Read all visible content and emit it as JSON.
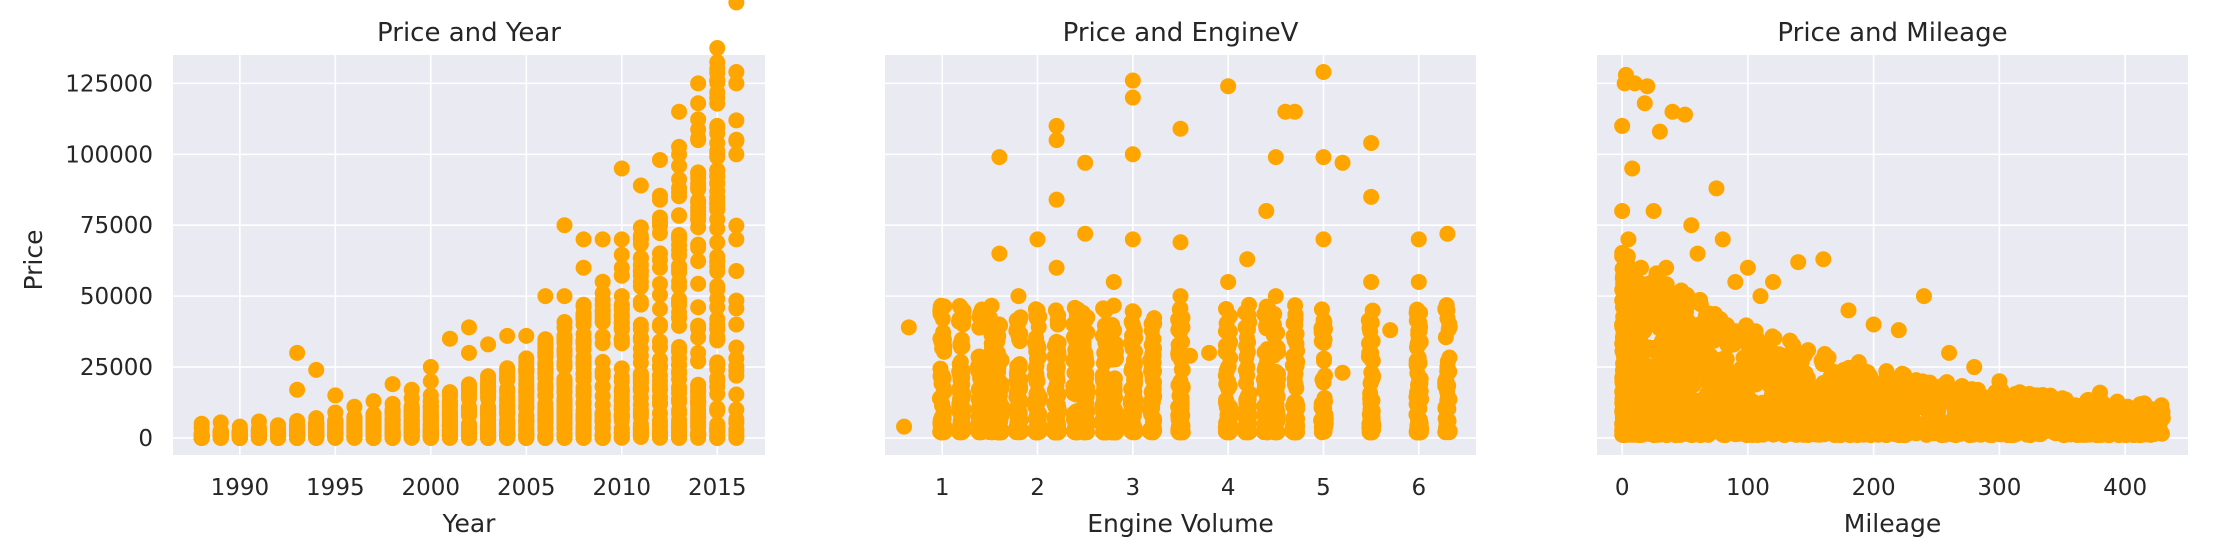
{
  "colors": {
    "accent": "#FFA500",
    "plot_bg": "#EAEAF2",
    "grid": "#FFFFFF"
  },
  "chart_data": [
    {
      "type": "scatter",
      "title": "Price and Year",
      "xlabel": "Year",
      "ylabel": "Price",
      "xlim": [
        1986.5,
        2017.5
      ],
      "ylim": [
        -6000,
        135000
      ],
      "xticks": [
        1990,
        1995,
        2000,
        2005,
        2010,
        2015
      ],
      "yticks": [
        0,
        25000,
        50000,
        75000,
        100000,
        125000
      ],
      "grid": true,
      "points": [
        [
          1988,
          1000
        ],
        [
          1988,
          3500
        ],
        [
          1988,
          5000
        ],
        [
          1989,
          2000
        ],
        [
          1989,
          5500
        ],
        [
          1990,
          1500
        ],
        [
          1990,
          4000
        ],
        [
          1991,
          2500
        ],
        [
          1991,
          5800
        ],
        [
          1992,
          2000
        ],
        [
          1992,
          4500
        ],
        [
          1993,
          3000
        ],
        [
          1993,
          6000
        ],
        [
          1993,
          17000
        ],
        [
          1993,
          30000
        ],
        [
          1994,
          2500
        ],
        [
          1994,
          7000
        ],
        [
          1994,
          24000
        ],
        [
          1995,
          3000
        ],
        [
          1995,
          9000
        ],
        [
          1995,
          15000
        ],
        [
          1996,
          4000
        ],
        [
          1996,
          11000
        ],
        [
          1997,
          5000
        ],
        [
          1997,
          13000
        ],
        [
          1998,
          5000
        ],
        [
          1998,
          12000
        ],
        [
          1998,
          19000
        ],
        [
          1999,
          6000
        ],
        [
          1999,
          14000
        ],
        [
          1999,
          17000
        ],
        [
          2000,
          7000
        ],
        [
          2000,
          15000
        ],
        [
          2000,
          20000
        ],
        [
          2000,
          25000
        ],
        [
          2001,
          8000
        ],
        [
          2001,
          16000
        ],
        [
          2001,
          35000
        ],
        [
          2002,
          8000
        ],
        [
          2002,
          18000
        ],
        [
          2002,
          30000
        ],
        [
          2002,
          39000
        ],
        [
          2003,
          9000
        ],
        [
          2003,
          20000
        ],
        [
          2003,
          33000
        ],
        [
          2004,
          10000
        ],
        [
          2004,
          22000
        ],
        [
          2004,
          36000
        ],
        [
          2005,
          11000
        ],
        [
          2005,
          24000
        ],
        [
          2005,
          36000
        ],
        [
          2006,
          12000
        ],
        [
          2006,
          30000
        ],
        [
          2006,
          50000
        ],
        [
          2007,
          14000
        ],
        [
          2007,
          35000
        ],
        [
          2007,
          50000
        ],
        [
          2007,
          75000
        ],
        [
          2008,
          15000
        ],
        [
          2008,
          40000
        ],
        [
          2008,
          60000
        ],
        [
          2008,
          70000
        ],
        [
          2009,
          18000
        ],
        [
          2009,
          45000
        ],
        [
          2009,
          70000
        ],
        [
          2010,
          20000
        ],
        [
          2010,
          50000
        ],
        [
          2010,
          70000
        ],
        [
          2010,
          95000
        ],
        [
          2011,
          22000
        ],
        [
          2011,
          55000
        ],
        [
          2011,
          70000
        ],
        [
          2011,
          89000
        ],
        [
          2012,
          25000
        ],
        [
          2012,
          60000
        ],
        [
          2012,
          77000
        ],
        [
          2012,
          98000
        ],
        [
          2013,
          28000
        ],
        [
          2013,
          70000
        ],
        [
          2013,
          100000
        ],
        [
          2013,
          115000
        ],
        [
          2014,
          30000
        ],
        [
          2014,
          80000
        ],
        [
          2014,
          105000
        ],
        [
          2014,
          118000
        ],
        [
          2014,
          125000
        ],
        [
          2015,
          35000
        ],
        [
          2015,
          90000
        ],
        [
          2015,
          110000
        ],
        [
          2015,
          126000
        ],
        [
          2016,
          10000
        ],
        [
          2016,
          40000
        ],
        [
          2016,
          70000
        ],
        [
          2016,
          100000
        ],
        [
          2016,
          125000
        ],
        [
          2016,
          129000
        ]
      ]
    },
    {
      "type": "scatter",
      "title": "Price and EngineV",
      "xlabel": "Engine Volume",
      "ylabel": "",
      "xlim": [
        0.4,
        6.6
      ],
      "ylim": [
        -6000,
        135000
      ],
      "xticks": [
        1,
        2,
        3,
        4,
        5,
        6
      ],
      "yticks": [
        0,
        25000,
        50000,
        75000,
        100000,
        125000
      ],
      "grid": true,
      "points": [
        [
          0.6,
          4000
        ],
        [
          0.65,
          39000
        ],
        [
          1.0,
          5000
        ],
        [
          1.0,
          12000
        ],
        [
          1.2,
          8000
        ],
        [
          1.4,
          25000
        ],
        [
          1.4,
          44000
        ],
        [
          1.6,
          15000
        ],
        [
          1.6,
          40000
        ],
        [
          1.6,
          65000
        ],
        [
          1.6,
          99000
        ],
        [
          1.8,
          20000
        ],
        [
          1.8,
          50000
        ],
        [
          2.0,
          20000
        ],
        [
          2.0,
          45000
        ],
        [
          2.0,
          70000
        ],
        [
          2.2,
          30000
        ],
        [
          2.2,
          60000
        ],
        [
          2.2,
          84000
        ],
        [
          2.2,
          105000
        ],
        [
          2.2,
          110000
        ],
        [
          2.5,
          30000
        ],
        [
          2.5,
          72000
        ],
        [
          2.5,
          97000
        ],
        [
          2.7,
          30000
        ],
        [
          2.8,
          55000
        ],
        [
          3.0,
          10000
        ],
        [
          3.0,
          40000
        ],
        [
          3.0,
          70000
        ],
        [
          3.0,
          100000
        ],
        [
          3.0,
          120000
        ],
        [
          3.0,
          126000
        ],
        [
          3.2,
          25000
        ],
        [
          3.5,
          20000
        ],
        [
          3.5,
          50000
        ],
        [
          3.5,
          69000
        ],
        [
          3.5,
          109000
        ],
        [
          3.6,
          29000
        ],
        [
          3.8,
          30000
        ],
        [
          4.0,
          25000
        ],
        [
          4.0,
          55000
        ],
        [
          4.0,
          124000
        ],
        [
          4.2,
          63000
        ],
        [
          4.4,
          80000
        ],
        [
          4.5,
          50000
        ],
        [
          4.5,
          99000
        ],
        [
          4.6,
          115000
        ],
        [
          4.7,
          115000
        ],
        [
          5.0,
          10000
        ],
        [
          5.0,
          40000
        ],
        [
          5.0,
          70000
        ],
        [
          5.0,
          99000
        ],
        [
          5.0,
          129000
        ],
        [
          5.2,
          23000
        ],
        [
          5.2,
          97000
        ],
        [
          5.5,
          30000
        ],
        [
          5.5,
          55000
        ],
        [
          5.5,
          85000
        ],
        [
          5.5,
          104000
        ],
        [
          5.7,
          38000
        ],
        [
          6.0,
          35000
        ],
        [
          6.0,
          55000
        ],
        [
          6.0,
          70000
        ],
        [
          6.3,
          25000
        ],
        [
          6.3,
          45000
        ],
        [
          6.3,
          72000
        ]
      ]
    },
    {
      "type": "scatter",
      "title": "Price and Mileage",
      "xlabel": "Mileage",
      "ylabel": "",
      "xlim": [
        -20,
        450
      ],
      "ylim": [
        -6000,
        135000
      ],
      "xticks": [
        0,
        100,
        200,
        300,
        400
      ],
      "yticks": [
        0,
        25000,
        50000,
        75000,
        100000,
        125000
      ],
      "grid": true,
      "points": [
        [
          0,
          5000
        ],
        [
          0,
          40000
        ],
        [
          0,
          80000
        ],
        [
          0,
          110000
        ],
        [
          2,
          125000
        ],
        [
          3,
          128000
        ],
        [
          5,
          70000
        ],
        [
          8,
          95000
        ],
        [
          10,
          125000
        ],
        [
          15,
          60000
        ],
        [
          18,
          118000
        ],
        [
          20,
          124000
        ],
        [
          25,
          80000
        ],
        [
          30,
          108000
        ],
        [
          35,
          60000
        ],
        [
          40,
          115000
        ],
        [
          50,
          114000
        ],
        [
          55,
          75000
        ],
        [
          60,
          65000
        ],
        [
          75,
          88000
        ],
        [
          80,
          70000
        ],
        [
          90,
          55000
        ],
        [
          100,
          60000
        ],
        [
          110,
          50000
        ],
        [
          120,
          55000
        ],
        [
          140,
          62000
        ],
        [
          160,
          63000
        ],
        [
          180,
          45000
        ],
        [
          200,
          40000
        ],
        [
          220,
          38000
        ],
        [
          240,
          50000
        ],
        [
          260,
          30000
        ],
        [
          280,
          25000
        ],
        [
          300,
          20000
        ],
        [
          330,
          15000
        ],
        [
          350,
          14000
        ],
        [
          380,
          16000
        ],
        [
          410,
          10000
        ],
        [
          430,
          7000
        ]
      ]
    }
  ]
}
